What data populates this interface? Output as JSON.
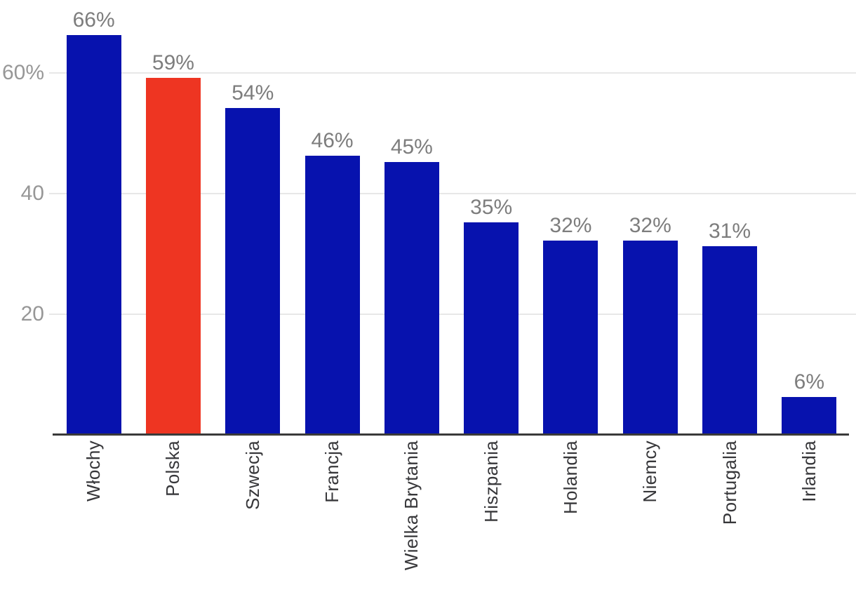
{
  "chart_data": {
    "type": "bar",
    "title": "",
    "xlabel": "",
    "ylabel": "",
    "categories": [
      "Włochy",
      "Polska",
      "Szwecja",
      "Francja",
      "Wielka Brytania",
      "Hiszpania",
      "Holandia",
      "Niemcy",
      "Portugalia",
      "Irlandia"
    ],
    "values": [
      66,
      59,
      54,
      46,
      45,
      35,
      32,
      32,
      31,
      6
    ],
    "value_labels": [
      "66%",
      "59%",
      "54%",
      "46%",
      "45%",
      "35%",
      "32%",
      "32%",
      "31%",
      "6%"
    ],
    "highlight_category": "Polska",
    "highlight_index": 1,
    "yticks": [
      {
        "value": 20,
        "label": "20"
      },
      {
        "value": 40,
        "label": "40"
      },
      {
        "value": 60,
        "label": "60%"
      }
    ],
    "ylim": [
      0,
      70
    ],
    "grid": "horizontal",
    "legend": "none",
    "x_label_rotation": -90
  },
  "colors": {
    "bar_default": "#0712AE",
    "bar_highlight": "#EE3522",
    "value_label": "#7d7d7d",
    "y_tick_label": "#979797",
    "x_tick_label": "#37373a",
    "gridline": "#e7e7e7",
    "axis_line": "#3a3a3a",
    "background": "#ffffff"
  }
}
